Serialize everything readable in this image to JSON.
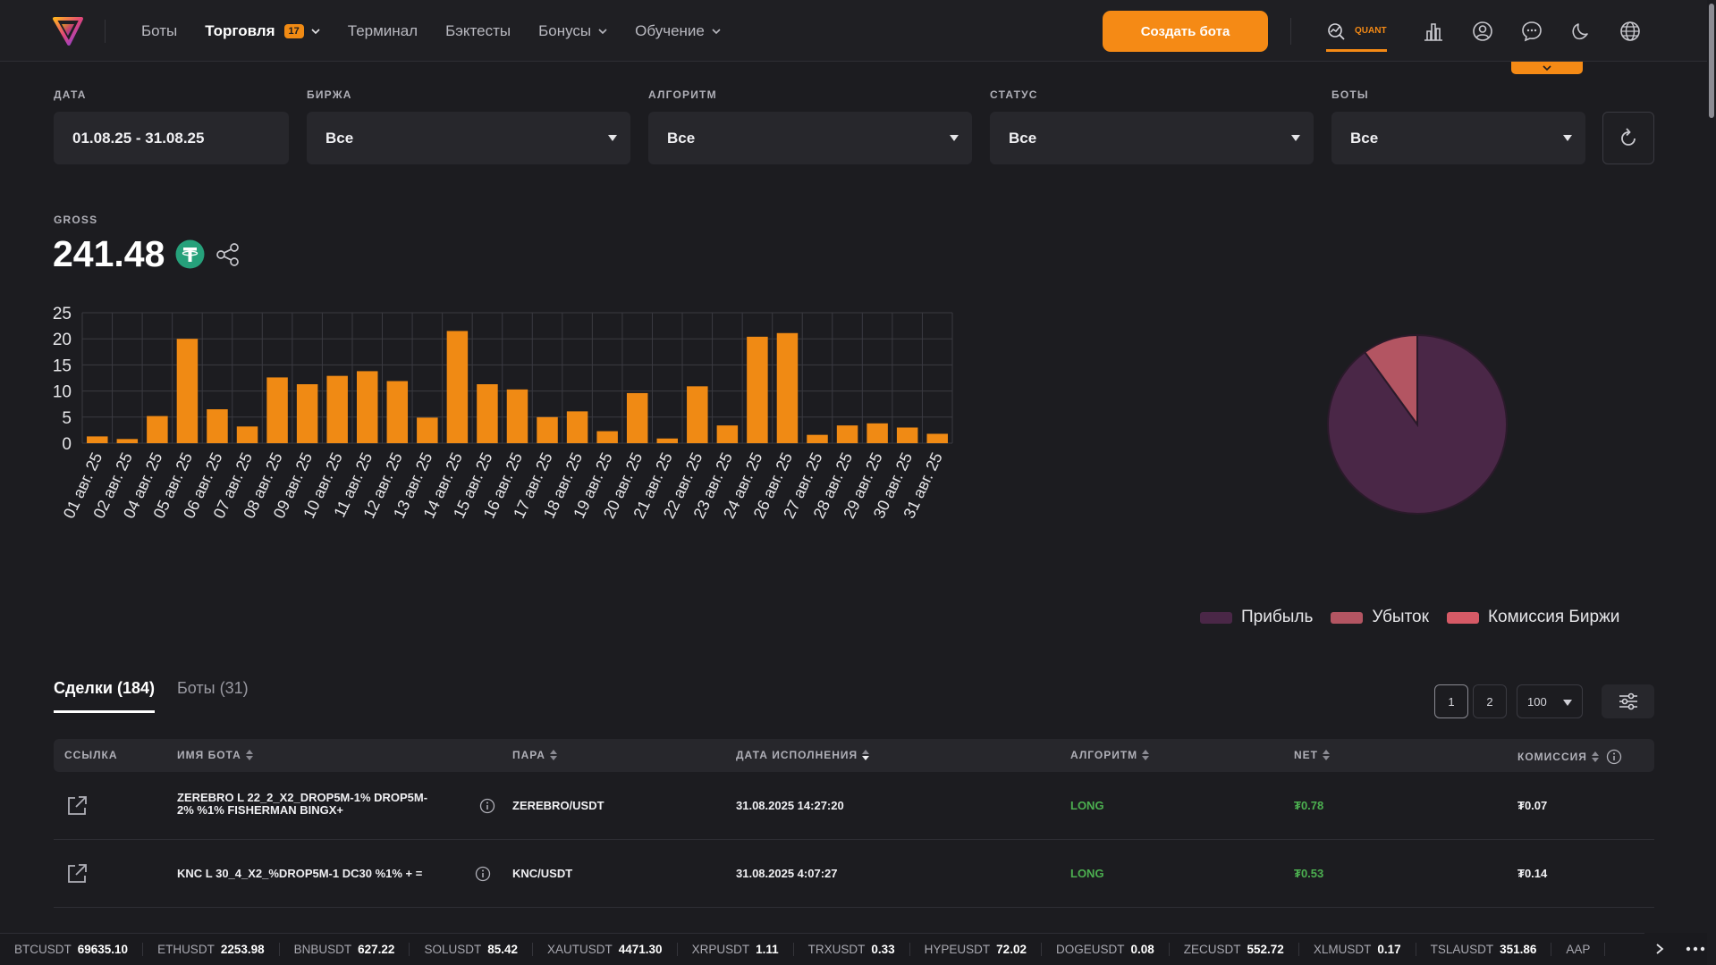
{
  "header": {
    "nav": [
      {
        "label": "Боты",
        "active": false
      },
      {
        "label": "Торговля",
        "active": true,
        "badge": "17",
        "dropdown": true
      },
      {
        "label": "Терминал",
        "active": false
      },
      {
        "label": "Бэктесты",
        "active": false
      },
      {
        "label": "Бонусы",
        "active": false,
        "dropdown": true
      },
      {
        "label": "Обучение",
        "active": false,
        "dropdown": true
      }
    ],
    "create_bot_label": "Создать бота",
    "quant_label": "QUANT",
    "accent": "#f58a15"
  },
  "filters": {
    "date": {
      "label": "ДАТА",
      "value": "01.08.25 - 31.08.25"
    },
    "exchange": {
      "label": "БИРЖА",
      "value": "Все"
    },
    "algorithm": {
      "label": "АЛГОРИТМ",
      "value": "Все"
    },
    "status": {
      "label": "СТАТУС",
      "value": "Все"
    },
    "bots": {
      "label": "БОТЫ",
      "value": "Все"
    }
  },
  "gross": {
    "label": "GROSS",
    "value": "241.48"
  },
  "chart_data": [
    {
      "type": "bar",
      "categories": [
        "01 авг. 25",
        "02 авг. 25",
        "04 авг. 25",
        "05 авг. 25",
        "06 авг. 25",
        "07 авг. 25",
        "08 авг. 25",
        "09 авг. 25",
        "10 авг. 25",
        "11 авг. 25",
        "12 авг. 25",
        "13 авг. 25",
        "14 авг. 25",
        "15 авг. 25",
        "16 авг. 25",
        "17 авг. 25",
        "18 авг. 25",
        "19 авг. 25",
        "20 авг. 25",
        "21 авг. 25",
        "22 авг. 25",
        "23 авг. 25",
        "24 авг. 25",
        "26 авг. 25",
        "27 авг. 25",
        "28 авг. 25",
        "29 авг. 25",
        "30 авг. 25",
        "31 авг. 25"
      ],
      "values": [
        1.3,
        0.8,
        5.2,
        20.0,
        6.5,
        3.2,
        12.6,
        11.3,
        12.9,
        13.8,
        11.9,
        4.9,
        21.5,
        11.3,
        10.3,
        5.0,
        6.1,
        2.3,
        9.6,
        0.9,
        10.9,
        3.4,
        20.4,
        21.1,
        1.6,
        3.4,
        3.8,
        3.0,
        1.8
      ],
      "ylim": [
        0,
        25
      ],
      "yticks": [
        0,
        5,
        10,
        15,
        20,
        25
      ],
      "grid": true,
      "bar_color": "#f08a14"
    },
    {
      "type": "pie",
      "slices": [
        {
          "name": "Прибыль",
          "value": 90,
          "color": "#4a2747"
        },
        {
          "name": "Убыток",
          "value": 10,
          "color": "#b35562"
        },
        {
          "name": "Комиссия Биржи",
          "value": 0,
          "color": "#d65a66"
        }
      ],
      "legend": "bottom"
    }
  ],
  "tabs": [
    {
      "label": "Сделки (184)",
      "active": true
    },
    {
      "label": "Боты (31)",
      "active": false
    }
  ],
  "pagination": {
    "pages": [
      "1",
      "2"
    ],
    "current": "1",
    "per_page": "100"
  },
  "table": {
    "headers": {
      "link": "ССЫЛКА",
      "bot_name": "ИМЯ БОТА",
      "pair": "ПАРА",
      "exec_date": "ДАТА ИСПОЛНЕНИЯ",
      "algorithm": "АЛГОРИТМ",
      "net": "NET",
      "commission": "КОМИССИЯ"
    },
    "rows": [
      {
        "bot_name_line1": "ZEREBRO L 22_2_X2_DROP5M-1% DROP5M-",
        "bot_name_line2": "2% %1% FISHERMAN BINGX+",
        "pair": "ZEREBRO/USDT",
        "exec_date": "31.08.2025 14:27:20",
        "algorithm": "LONG",
        "net": "₮0.78",
        "commission": "₮0.07"
      },
      {
        "bot_name_line1": "KNC L 30_4_X2_%DROP5M-1 DC30 %1% + =",
        "bot_name_line2": "",
        "pair": "KNC/USDT",
        "exec_date": "31.08.2025 4:07:27",
        "algorithm": "LONG",
        "net": "₮0.53",
        "commission": "₮0.14"
      }
    ]
  },
  "ticker": [
    {
      "symbol": "BTCUSDT",
      "price": "69635.10"
    },
    {
      "symbol": "ETHUSDT",
      "price": "2253.98"
    },
    {
      "symbol": "BNBUSDT",
      "price": "627.22"
    },
    {
      "symbol": "SOLUSDT",
      "price": "85.42"
    },
    {
      "symbol": "XAUTUSDT",
      "price": "4471.30"
    },
    {
      "symbol": "XRPUSDT",
      "price": "1.11"
    },
    {
      "symbol": "TRXUSDT",
      "price": "0.33"
    },
    {
      "symbol": "HYPEUSDT",
      "price": "72.02"
    },
    {
      "symbol": "DOGEUSDT",
      "price": "0.08"
    },
    {
      "symbol": "ZECUSDT",
      "price": "552.72"
    },
    {
      "symbol": "XLMUSDT",
      "price": "0.17"
    },
    {
      "symbol": "TSLAUSDT",
      "price": "351.86"
    },
    {
      "symbol": "AAP",
      "price": ""
    }
  ]
}
